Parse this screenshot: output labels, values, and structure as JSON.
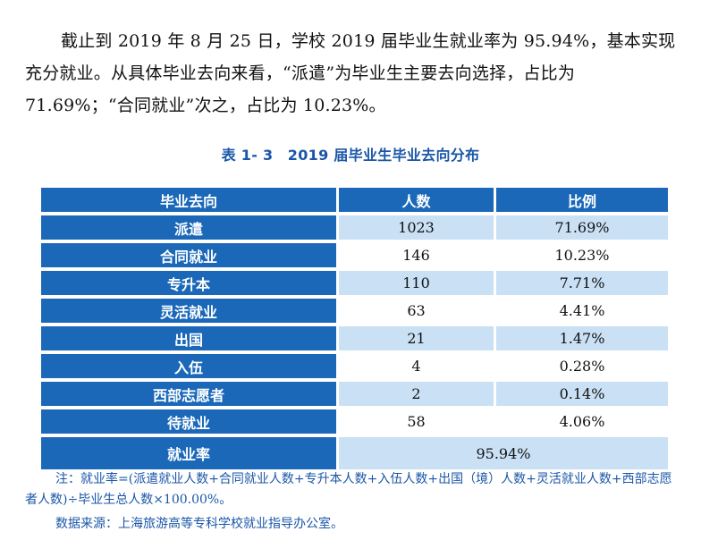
{
  "paragraph": "截止到 2019 年 8 月 25 日，学校 2019 届毕业生就业率为 95.94%，基本实现充分就业。从具体毕业去向来看，“派遣”为毕业生主要去向选择，占比为 71.69%；“合同就业”次之，占比为 10.23%。",
  "caption": "表 1- 3　2019 届毕业生毕业去向分布",
  "table": {
    "headers": [
      "毕业去向",
      "人数",
      "比例"
    ],
    "rows": [
      {
        "label": "派遣",
        "count": "1023",
        "ratio": "71.69%"
      },
      {
        "label": "合同就业",
        "count": "146",
        "ratio": "10.23%"
      },
      {
        "label": "专升本",
        "count": "110",
        "ratio": "7.71%"
      },
      {
        "label": "灵活就业",
        "count": "63",
        "ratio": "4.41%"
      },
      {
        "label": "出国",
        "count": "21",
        "ratio": "1.47%"
      },
      {
        "label": "入伍",
        "count": "4",
        "ratio": "0.28%"
      },
      {
        "label": "西部志愿者",
        "count": "2",
        "ratio": "0.14%"
      },
      {
        "label": "待就业",
        "count": "58",
        "ratio": "4.06%"
      }
    ],
    "total_label": "就业率",
    "total_value": "95.94%"
  },
  "note": "注：就业率=(派遣就业人数+合同就业人数+专升本人数+入伍人数+出国（境）人数+灵活就业人数+西部志愿者人数)÷毕业生总人数×100.00%。",
  "source": "数据来源：上海旅游高等专科学校就业指导办公室。",
  "colors": {
    "header_bg": "#1b68b9",
    "alt_row_bg": "#c9e0f5",
    "caption_text": "#1a56a8"
  }
}
